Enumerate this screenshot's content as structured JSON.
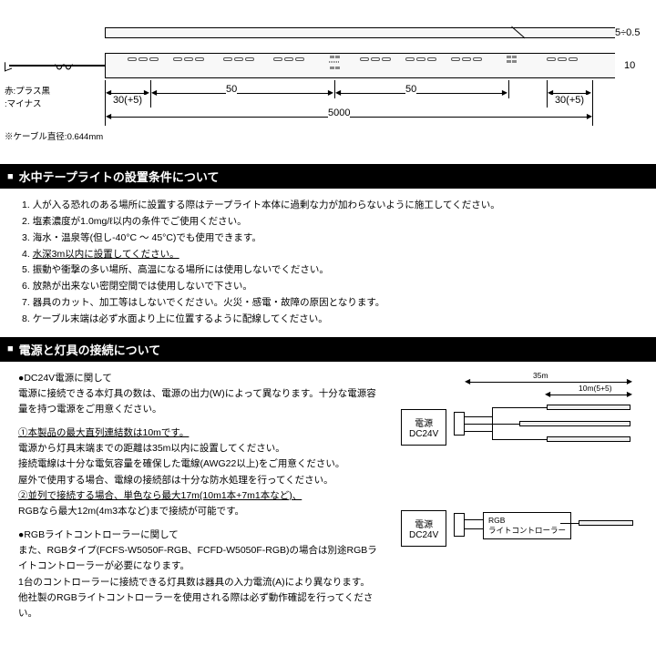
{
  "diagram": {
    "cable_label": "赤:プラス黒\n:マイナス",
    "cable_note": "※ケーブル直径:0.644mm",
    "dim_30_left": "30(+5)",
    "dim_50_a": "50",
    "dim_50_b": "50",
    "dim_30_right": "30(+5)",
    "dim_5000": "5000",
    "dim_height_top": "5÷0.5",
    "dim_height_main": "10",
    "colors": {
      "strip_bg": "#f8f8f8",
      "line": "#000000"
    }
  },
  "section1": {
    "title": "水中テープライトの設置条件について",
    "items": [
      "人が入る恐れのある場所に設置する際はテープライト本体に過剰な力が加わらないように施工してください。",
      "塩素濃度が1.0mg/ℓ以内の条件でご使用ください。",
      "海水・温泉等(但し-40°C ～ 45°C)でも使用できます。",
      {
        "text": "水深3m以内に設置してください。",
        "underline": true
      },
      "振動や衝撃の多い場所、高温になる場所には使用しないでください。",
      "放熱が出来ない密閉空間では使用しないで下さい。",
      "器具のカット、加工等はしないでください。火災・感電・故障の原因となります。",
      "ケーブル末端は必ず水面より上に位置するように配線してください。"
    ]
  },
  "section2": {
    "title": "電源と灯具の接続について",
    "dc24v_heading": "●DC24V電源に関して",
    "dc24v_body": "電源に接続できる本灯具の数は、電源の出力(W)によって異なります。十分な電源容量を持つ電源をご用意ください。",
    "point1_heading": "①本製品の最大直列連結数は10mです。",
    "point1_body": "電源から灯具末端までの距離は35m以内に設置してください。\n接続電線は十分な電気容量を確保した電線(AWG22以上)をご用意ください。\n屋外で使用する場合、電線の接続部は十分な防水処理を行ってください。",
    "point2_heading": "②並列で接続する場合、単色なら最大17m(10m1本+7m1本など)、",
    "point2_body": "RGBなら最大12m(4m3本など)まで接続が可能です。",
    "rgb_heading": "●RGBライトコントローラーに関して",
    "rgb_body": "また、RGBタイプ(FCFS-W5050F-RGB、FCFD-W5050F-RGB)の場合は別途RGBライトコントローラーが必要になります。\n1台のコントローラーに接続できる灯具数は器具の入力電流(A)により異なります。\n他社製のRGBライトコントローラーを使用される際は必ず動作確認を行ってください。",
    "psu_label": "電源\nDC24V",
    "rgb_ctrl_label": "RGB\nライトコントローラー",
    "dim_35m": "35m",
    "dim_10m": "10m(5+5)"
  }
}
